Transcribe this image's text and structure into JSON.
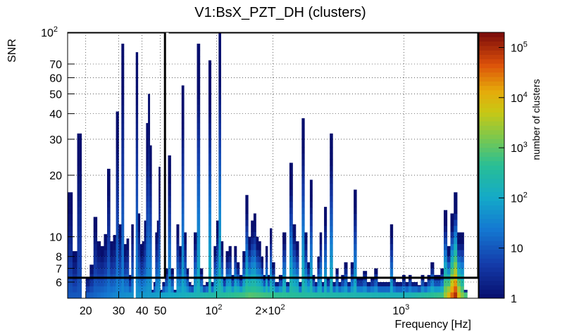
{
  "chart_data": {
    "type": "heatmap",
    "title": "V1:BsX_PZT_DH (clusters)",
    "xlabel": "Frequency [Hz]",
    "ylabel": "SNR",
    "colorbar_label": "number of clusters",
    "x_scale": "log",
    "y_scale": "log",
    "xlim": [
      16,
      2500
    ],
    "ylim": [
      5,
      100
    ],
    "zlim": [
      1,
      200000
    ],
    "grid": true,
    "x_ticks": [
      {
        "value": 20,
        "label": "20"
      },
      {
        "value": 30,
        "label": "30"
      },
      {
        "value": 40,
        "label": "40"
      },
      {
        "value": 50,
        "label": "50"
      },
      {
        "value": 100,
        "label": "10",
        "exp": "2"
      },
      {
        "value": 200,
        "label": "2×10",
        "exp": "2"
      },
      {
        "value": 1000,
        "label": "10",
        "exp": "3"
      }
    ],
    "y_ticks": [
      {
        "value": 6,
        "label": "6"
      },
      {
        "value": 7,
        "label": "7"
      },
      {
        "value": 8,
        "label": "8"
      },
      {
        "value": 10,
        "label": "10"
      },
      {
        "value": 20,
        "label": "20"
      },
      {
        "value": 30,
        "label": "30"
      },
      {
        "value": 40,
        "label": "40"
      },
      {
        "value": 50,
        "label": "50"
      },
      {
        "value": 60,
        "label": "60"
      },
      {
        "value": 70,
        "label": "70"
      },
      {
        "value": 100,
        "label": "10",
        "exp": "2"
      }
    ],
    "z_ticks": [
      {
        "value": 1,
        "label": "1"
      },
      {
        "value": 10,
        "label": "10"
      },
      {
        "value": 100,
        "label": "10",
        "exp": "2"
      },
      {
        "value": 1000,
        "label": "10",
        "exp": "3"
      },
      {
        "value": 10000,
        "label": "10",
        "exp": "4"
      },
      {
        "value": 100000,
        "label": "10",
        "exp": "5"
      }
    ],
    "columns_f_max_snr": [
      [
        16.5,
        16.5
      ],
      [
        17.5,
        8.5
      ],
      [
        18.5,
        32
      ],
      [
        19.5,
        5.0
      ],
      [
        20.5,
        6.3
      ],
      [
        21.5,
        7.3
      ],
      [
        22.5,
        12.5
      ],
      [
        23.5,
        9.5
      ],
      [
        24.5,
        9.0
      ],
      [
        25.5,
        10.3
      ],
      [
        26.5,
        21.5
      ],
      [
        27.5,
        9.5
      ],
      [
        28.5,
        10.2
      ],
      [
        29.5,
        41
      ],
      [
        30.5,
        11.5
      ],
      [
        31.5,
        88
      ],
      [
        32.5,
        9.2
      ],
      [
        33.5,
        9.8
      ],
      [
        34.5,
        6.5
      ],
      [
        35.5,
        11.5
      ],
      [
        36.5,
        3.2
      ],
      [
        37.5,
        80
      ],
      [
        38.5,
        13.0
      ],
      [
        39.5,
        9.2
      ],
      [
        40.5,
        9.5
      ],
      [
        41.5,
        12.0
      ],
      [
        42.5,
        36
      ],
      [
        43.5,
        50
      ],
      [
        44.5,
        28
      ],
      [
        45.5,
        5.5
      ],
      [
        46.5,
        6.0
      ],
      [
        47.5,
        10.5
      ],
      [
        48.5,
        12.0
      ],
      [
        49.5,
        22
      ],
      [
        50.5,
        5.5
      ],
      [
        52,
        6.0
      ],
      [
        54,
        7.0
      ],
      [
        56,
        25
      ],
      [
        58,
        7.0
      ],
      [
        60,
        5.5
      ],
      [
        62,
        11.5
      ],
      [
        64,
        9.0
      ],
      [
        66,
        55
      ],
      [
        68,
        10.5
      ],
      [
        70,
        7.0
      ],
      [
        72,
        6.0
      ],
      [
        74,
        5.8
      ],
      [
        77,
        10.5
      ],
      [
        80,
        88
      ],
      [
        83,
        7.0
      ],
      [
        86,
        5.8
      ],
      [
        89,
        6.0
      ],
      [
        92,
        73
      ],
      [
        95,
        6.0
      ],
      [
        98,
        9.0
      ],
      [
        101,
        12.0
      ],
      [
        104,
        100
      ],
      [
        107,
        9.5
      ],
      [
        110,
        6.3
      ],
      [
        114,
        8.5
      ],
      [
        118,
        9.0
      ],
      [
        122,
        6.5
      ],
      [
        126,
        9.0
      ],
      [
        130,
        7.5
      ],
      [
        135,
        6.5
      ],
      [
        140,
        8.5
      ],
      [
        145,
        16.0
      ],
      [
        150,
        10.0
      ],
      [
        155,
        12.0
      ],
      [
        160,
        13.0
      ],
      [
        165,
        10.0
      ],
      [
        170,
        9.5
      ],
      [
        175,
        8.0
      ],
      [
        180,
        6.5
      ],
      [
        185,
        9.0
      ],
      [
        190,
        6.5
      ],
      [
        195,
        11.0
      ],
      [
        200,
        7.5
      ],
      [
        210,
        6.0
      ],
      [
        220,
        6.5
      ],
      [
        230,
        10.5
      ],
      [
        240,
        6.0
      ],
      [
        250,
        23
      ],
      [
        260,
        11.5
      ],
      [
        270,
        9.5
      ],
      [
        280,
        6.0
      ],
      [
        290,
        38
      ],
      [
        300,
        10.5
      ],
      [
        310,
        7.5
      ],
      [
        320,
        19.0
      ],
      [
        330,
        6.5
      ],
      [
        340,
        6.0
      ],
      [
        350,
        8.0
      ],
      [
        360,
        10.5
      ],
      [
        370,
        6.0
      ],
      [
        380,
        14.0
      ],
      [
        395,
        6.3
      ],
      [
        410,
        32
      ],
      [
        425,
        6.0
      ],
      [
        440,
        7.0
      ],
      [
        455,
        6.0
      ],
      [
        470,
        6.5
      ],
      [
        490,
        7.5
      ],
      [
        510,
        6.0
      ],
      [
        530,
        7.5
      ],
      [
        550,
        17.0
      ],
      [
        570,
        6.3
      ],
      [
        590,
        6.3
      ],
      [
        620,
        6.8
      ],
      [
        650,
        6.0
      ],
      [
        680,
        6.3
      ],
      [
        710,
        7.0
      ],
      [
        740,
        6.0
      ],
      [
        770,
        6.0
      ],
      [
        800,
        6.0
      ],
      [
        830,
        6.0
      ],
      [
        860,
        11.5
      ],
      [
        890,
        6.3
      ],
      [
        920,
        6.0
      ],
      [
        960,
        6.0
      ],
      [
        1000,
        6.5
      ],
      [
        1040,
        6.0
      ],
      [
        1080,
        6.5
      ],
      [
        1120,
        6.0
      ],
      [
        1160,
        6.0
      ],
      [
        1210,
        5.8
      ],
      [
        1260,
        6.5
      ],
      [
        1310,
        6.0
      ],
      [
        1360,
        6.5
      ],
      [
        1420,
        7.5
      ],
      [
        1480,
        6.5
      ],
      [
        1540,
        6.5
      ],
      [
        1600,
        7.0
      ],
      [
        1670,
        13.5
      ],
      [
        1740,
        9.0
      ],
      [
        1810,
        13.0
      ],
      [
        1890,
        16.5
      ],
      [
        1970,
        10.5
      ],
      [
        2050,
        10.5
      ],
      [
        2140,
        5.5
      ],
      [
        2230,
        5.0
      ],
      [
        2330,
        5.0
      ],
      [
        2420,
        5.0
      ]
    ],
    "low_snr_color_profile": [
      [
        20,
        10
      ],
      [
        30,
        40
      ],
      [
        50,
        80
      ],
      [
        100,
        300
      ],
      [
        140,
        600
      ],
      [
        150,
        900
      ],
      [
        200,
        500
      ],
      [
        400,
        250
      ],
      [
        1000,
        150
      ],
      [
        1600,
        600
      ],
      [
        1800,
        30000
      ],
      [
        1900,
        100000
      ],
      [
        2000,
        3000
      ],
      [
        2300,
        150
      ],
      [
        2500,
        100
      ]
    ],
    "boxes": [
      {
        "f_min": 16,
        "f_max": 53,
        "snr_min": 6.3,
        "snr_max": 100
      },
      {
        "f_min": 55.5,
        "f_max": 2500,
        "snr_min": 6.3,
        "snr_max": 100
      }
    ]
  }
}
